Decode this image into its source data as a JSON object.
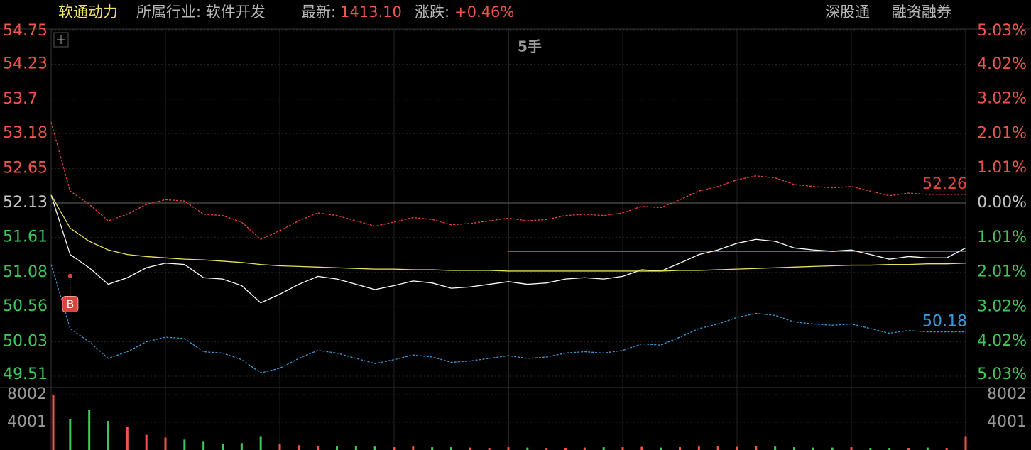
{
  "header": {
    "name": "软通动力",
    "industry": "所属行业: 软件开发",
    "latest_label": "最新:",
    "latest_value": "1413.10",
    "change_label": "涨跌:",
    "change_value": "+0.46%",
    "links": [
      "深股通",
      "融资融券"
    ]
  },
  "chart_data": [
    {
      "type": "line",
      "note_text": "5手",
      "base": 52.13,
      "ylim": [
        49.51,
        54.75
      ],
      "yticks": [
        54.75,
        54.23,
        53.7,
        53.18,
        52.65,
        52.13,
        51.61,
        51.08,
        50.56,
        50.03,
        49.51
      ],
      "y2lim": [
        -5.03,
        5.03
      ],
      "y2ticks": [
        {
          "value": 5.03,
          "label": "5.03%"
        },
        {
          "value": 4.02,
          "label": "4.02%"
        },
        {
          "value": 3.02,
          "label": "3.02%"
        },
        {
          "value": 2.01,
          "label": "2.01%"
        },
        {
          "value": 1.01,
          "label": "1.01%"
        },
        {
          "value": 0,
          "label": "0.00%"
        },
        {
          "value": -1.01,
          "label": "1.01%"
        },
        {
          "value": -2.01,
          "label": "2.01%"
        },
        {
          "value": -3.02,
          "label": "3.02%"
        },
        {
          "value": -4.02,
          "label": "4.02%"
        },
        {
          "value": -5.03,
          "label": "5.03%"
        }
      ],
      "up_color": "#f0544c",
      "down_color": "#3cc85a",
      "flat_color": "#c8c8c8",
      "grid": true,
      "series": [
        {
          "name": "price",
          "color": "#ffffff",
          "dashed": false,
          "values": [
            52.25,
            51.35,
            51.15,
            50.9,
            51.0,
            51.15,
            51.22,
            51.2,
            51.0,
            50.98,
            50.88,
            50.62,
            50.75,
            50.9,
            51.02,
            50.98,
            50.9,
            50.82,
            50.88,
            50.95,
            50.92,
            50.84,
            50.86,
            50.9,
            50.94,
            50.9,
            50.92,
            50.98,
            51.0,
            50.98,
            51.02,
            51.12,
            51.1,
            51.22,
            51.35,
            51.42,
            51.52,
            51.58,
            51.55,
            51.45,
            51.42,
            51.4,
            51.42,
            51.35,
            51.28,
            51.32,
            51.3,
            51.3,
            51.45
          ]
        },
        {
          "name": "average",
          "color": "#e8e05a",
          "dashed": false,
          "values": [
            52.25,
            51.75,
            51.55,
            51.42,
            51.35,
            51.32,
            51.3,
            51.28,
            51.27,
            51.25,
            51.23,
            51.2,
            51.18,
            51.17,
            51.16,
            51.15,
            51.14,
            51.13,
            51.13,
            51.12,
            51.12,
            51.11,
            51.11,
            51.11,
            51.1,
            51.1,
            51.1,
            51.1,
            51.1,
            51.1,
            51.1,
            51.1,
            51.1,
            51.11,
            51.11,
            51.12,
            51.13,
            51.14,
            51.15,
            51.16,
            51.17,
            51.18,
            51.19,
            51.19,
            51.2,
            51.2,
            51.21,
            51.21,
            51.22
          ]
        },
        {
          "name": "upper",
          "color": "#e8443c",
          "dashed": true,
          "end_label": true,
          "values": [
            53.35,
            52.31,
            52.11,
            51.86,
            51.96,
            52.11,
            52.18,
            52.16,
            51.96,
            51.94,
            51.84,
            51.58,
            51.71,
            51.86,
            51.98,
            51.94,
            51.86,
            51.78,
            51.84,
            51.91,
            51.88,
            51.8,
            51.82,
            51.86,
            51.9,
            51.86,
            51.88,
            51.94,
            51.96,
            51.94,
            51.98,
            52.08,
            52.06,
            52.18,
            52.31,
            52.38,
            52.48,
            52.54,
            52.51,
            52.41,
            52.38,
            52.36,
            52.38,
            52.31,
            52.24,
            52.28,
            52.26,
            52.26,
            52.26
          ]
        },
        {
          "name": "lower",
          "color": "#3a9ad8",
          "dashed": true,
          "end_label": true,
          "values": [
            51.2,
            50.23,
            50.03,
            49.78,
            49.88,
            50.03,
            50.1,
            50.08,
            49.88,
            49.86,
            49.76,
            49.56,
            49.63,
            49.78,
            49.9,
            49.86,
            49.78,
            49.7,
            49.76,
            49.83,
            49.8,
            49.72,
            49.74,
            49.78,
            49.82,
            49.78,
            49.8,
            49.86,
            49.88,
            49.86,
            49.9,
            50.0,
            49.98,
            50.1,
            50.23,
            50.3,
            50.4,
            50.46,
            50.43,
            50.33,
            50.3,
            50.28,
            50.3,
            50.23,
            50.16,
            50.2,
            50.18,
            50.18,
            50.18
          ]
        }
      ],
      "reference_line": {
        "value": 51.4,
        "start": 24,
        "color": "#2e8a3a"
      },
      "marker": {
        "label": "B",
        "index": 1,
        "value": 50.6,
        "color": "#d8453e"
      }
    },
    {
      "type": "volume",
      "ylim": [
        0,
        8002
      ],
      "yticks": [
        8002,
        4001
      ],
      "values": [
        7900,
        4500,
        5800,
        4200,
        3300,
        2200,
        1800,
        1500,
        1200,
        900,
        1000,
        2000,
        900,
        700,
        600,
        500,
        600,
        500,
        400,
        500,
        400,
        400,
        350,
        300,
        400,
        350,
        300,
        300,
        350,
        400,
        400,
        450,
        350,
        400,
        500,
        550,
        450,
        600,
        500,
        400,
        350,
        350,
        400,
        300,
        300,
        300,
        350,
        300,
        2000
      ]
    }
  ]
}
